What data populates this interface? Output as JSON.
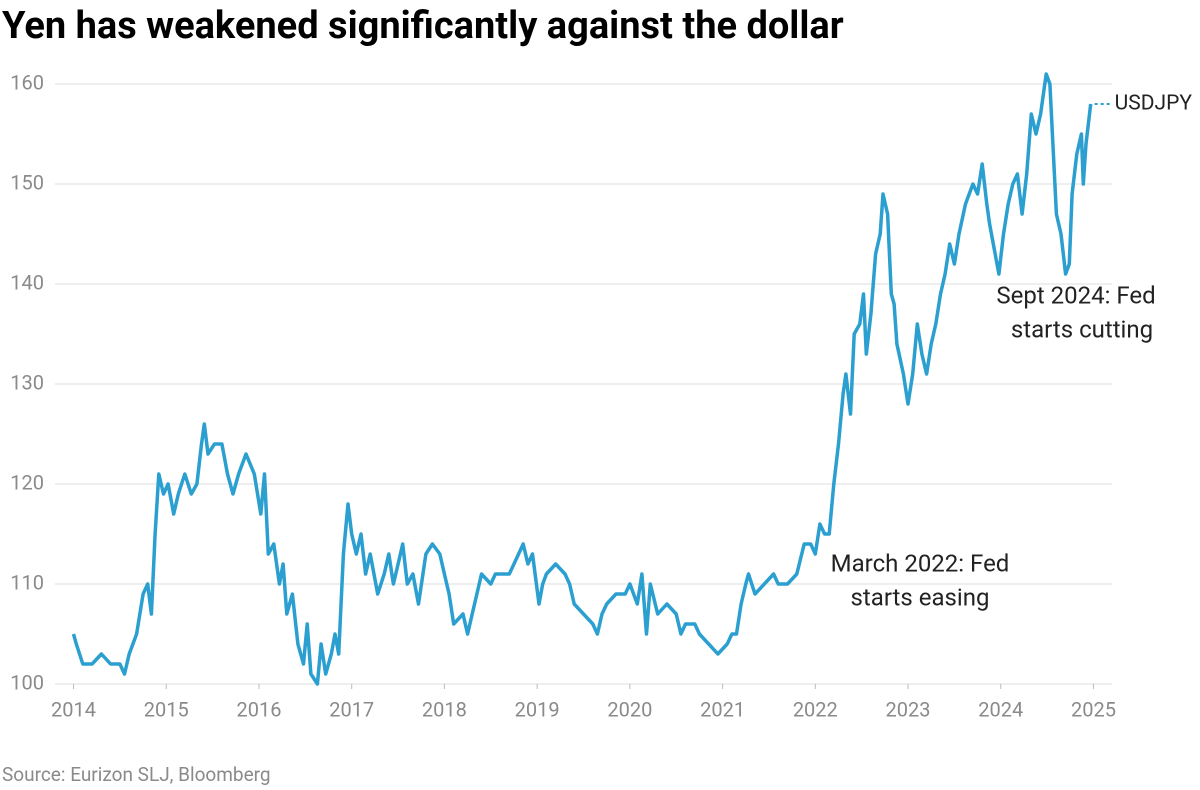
{
  "chart_data": {
    "type": "line",
    "title": "Yen has weakened significantly against the dollar",
    "source": "Source: Eurizon SLJ, Bloomberg",
    "annotations": [
      {
        "lines": [
          "March 2022: Fed",
          "starts easing"
        ]
      },
      {
        "lines": [
          "Sept 2024: Fed",
          "starts cutting"
        ]
      }
    ],
    "x": [
      2014.0,
      2014.03,
      2014.1,
      2014.2,
      2014.3,
      2014.4,
      2014.5,
      2014.55,
      2014.6,
      2014.68,
      2014.75,
      2014.8,
      2014.84,
      2014.88,
      2014.92,
      2014.97,
      2015.02,
      2015.08,
      2015.13,
      2015.2,
      2015.27,
      2015.33,
      2015.38,
      2015.41,
      2015.45,
      2015.52,
      2015.6,
      2015.66,
      2015.72,
      2015.78,
      2015.86,
      2015.95,
      2016.02,
      2016.06,
      2016.1,
      2016.16,
      2016.22,
      2016.26,
      2016.3,
      2016.36,
      2016.42,
      2016.48,
      2016.52,
      2016.56,
      2016.63,
      2016.67,
      2016.72,
      2016.78,
      2016.82,
      2016.86,
      2016.91,
      2016.96,
      2017.0,
      2017.05,
      2017.1,
      2017.15,
      2017.2,
      2017.28,
      2017.35,
      2017.4,
      2017.45,
      2017.5,
      2017.55,
      2017.6,
      2017.66,
      2017.72,
      2017.8,
      2017.87,
      2017.95,
      2018.0,
      2018.05,
      2018.1,
      2018.2,
      2018.25,
      2018.3,
      2018.35,
      2018.4,
      2018.5,
      2018.55,
      2018.7,
      2018.8,
      2018.85,
      2018.9,
      2018.95,
      2019.02,
      2019.06,
      2019.1,
      2019.2,
      2019.3,
      2019.35,
      2019.4,
      2019.5,
      2019.6,
      2019.65,
      2019.7,
      2019.75,
      2019.85,
      2019.95,
      2020.0,
      2020.08,
      2020.13,
      2020.18,
      2020.22,
      2020.3,
      2020.4,
      2020.5,
      2020.55,
      2020.6,
      2020.7,
      2020.75,
      2020.85,
      2020.95,
      2021.05,
      2021.1,
      2021.15,
      2021.2,
      2021.25,
      2021.28,
      2021.35,
      2021.45,
      2021.55,
      2021.6,
      2021.7,
      2021.8,
      2021.88,
      2021.95,
      2022.0,
      2022.05,
      2022.1,
      2022.15,
      2022.2,
      2022.25,
      2022.3,
      2022.33,
      2022.38,
      2022.42,
      2022.48,
      2022.52,
      2022.55,
      2022.6,
      2022.65,
      2022.7,
      2022.73,
      2022.78,
      2022.82,
      2022.85,
      2022.88,
      2022.95,
      2023.0,
      2023.05,
      2023.1,
      2023.15,
      2023.2,
      2023.25,
      2023.3,
      2023.35,
      2023.4,
      2023.45,
      2023.5,
      2023.55,
      2023.62,
      2023.7,
      2023.75,
      2023.8,
      2023.85,
      2023.88,
      2023.92,
      2023.98,
      2024.03,
      2024.08,
      2024.13,
      2024.18,
      2024.23,
      2024.28,
      2024.33,
      2024.38,
      2024.43,
      2024.49,
      2024.53,
      2024.6,
      2024.65,
      2024.7,
      2024.74,
      2024.77,
      2024.82,
      2024.87,
      2024.89,
      2024.92,
      2024.97
    ],
    "series": [
      {
        "name": "USDJPY",
        "color": "#2a9fd0",
        "values": [
          105,
          104,
          102,
          102,
          103,
          102,
          102,
          101,
          103,
          105,
          109,
          110,
          107,
          115,
          121,
          119,
          120,
          117,
          119,
          121,
          119,
          120,
          124,
          126,
          123,
          124,
          124,
          121,
          119,
          121,
          123,
          121,
          117,
          121,
          113,
          114,
          110,
          112,
          107,
          109,
          104,
          102,
          106,
          101,
          100,
          104,
          101,
          103,
          105,
          103,
          113,
          118,
          115,
          113,
          115,
          111,
          113,
          109,
          111,
          113,
          110,
          112,
          114,
          110,
          111,
          108,
          113,
          114,
          113,
          111,
          109,
          106,
          107,
          105,
          107,
          109,
          111,
          110,
          111,
          111,
          113,
          114,
          112,
          113,
          108,
          110,
          111,
          112,
          111,
          110,
          108,
          107,
          106,
          105,
          107,
          108,
          109,
          109,
          110,
          108,
          111,
          105,
          110,
          107,
          108,
          107,
          105,
          106,
          106,
          105,
          104,
          103,
          104,
          105,
          105,
          108,
          110,
          111,
          109,
          110,
          111,
          110,
          110,
          111,
          114,
          114,
          113,
          116,
          115,
          115,
          120,
          124,
          129,
          131,
          127,
          135,
          136,
          139,
          133,
          137,
          143,
          145,
          149,
          147,
          139,
          138,
          134,
          131,
          128,
          131,
          136,
          133,
          131,
          134,
          136,
          139,
          141,
          144,
          142,
          145,
          148,
          150,
          149,
          152,
          148,
          146,
          144,
          141,
          145,
          148,
          150,
          151,
          147,
          151,
          157,
          155,
          157,
          161,
          160,
          147,
          145,
          141,
          142,
          149,
          153,
          155,
          150,
          154,
          158
        ]
      }
    ],
    "xlim": [
      2013.8,
      2025.2
    ],
    "xticks": [
      2014,
      2015,
      2016,
      2017,
      2018,
      2019,
      2020,
      2021,
      2022,
      2023,
      2024,
      2025
    ],
    "ylim": [
      100,
      162
    ],
    "yticks": [
      100,
      110,
      120,
      130,
      140,
      150,
      160
    ],
    "grid": true
  }
}
